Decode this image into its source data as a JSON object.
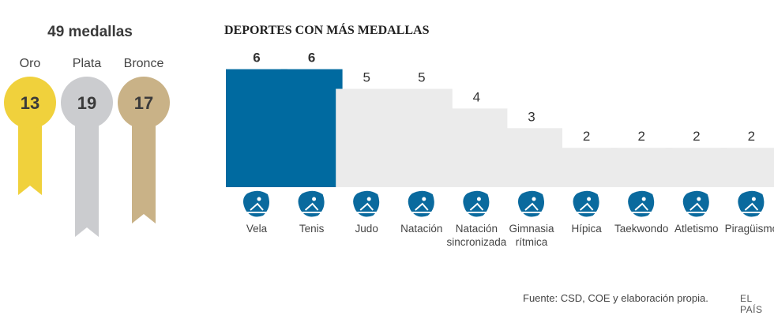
{
  "medals": {
    "total_label": "49 medallas",
    "items": [
      {
        "label": "Oro",
        "value": 13,
        "color": "#f0d13c"
      },
      {
        "label": "Plata",
        "value": 19,
        "color": "#cbcccf"
      },
      {
        "label": "Bronce",
        "value": 17,
        "color": "#c9b287"
      }
    ]
  },
  "chart_data": {
    "type": "bar",
    "title": "DEPORTES CON MÁS MEDALLAS",
    "categories": [
      "Vela",
      "Tenis",
      "Judo",
      "Natación",
      "Natación sincronizada",
      "Gimnasia rítmica",
      "Hípica",
      "Taekwondo",
      "Atletismo",
      "Piragüismo"
    ],
    "values": [
      6,
      6,
      5,
      5,
      4,
      3,
      2,
      2,
      2,
      2
    ],
    "highlight_color": "#006aa0",
    "bar_color": "#ebebeb",
    "icon_color": "#0a6a9e",
    "icons": [
      "sailing-icon",
      "tennis-icon",
      "judo-icon",
      "swimming-icon",
      "synchronized-swimming-icon",
      "rhythmic-gymnastics-icon",
      "equestrian-icon",
      "taekwondo-icon",
      "athletics-icon",
      "canoeing-icon"
    ],
    "ylim": [
      0,
      6
    ]
  },
  "footer": {
    "source": "Fuente: CSD, COE y elaboración propia.",
    "logo": "EL PAÍS"
  }
}
